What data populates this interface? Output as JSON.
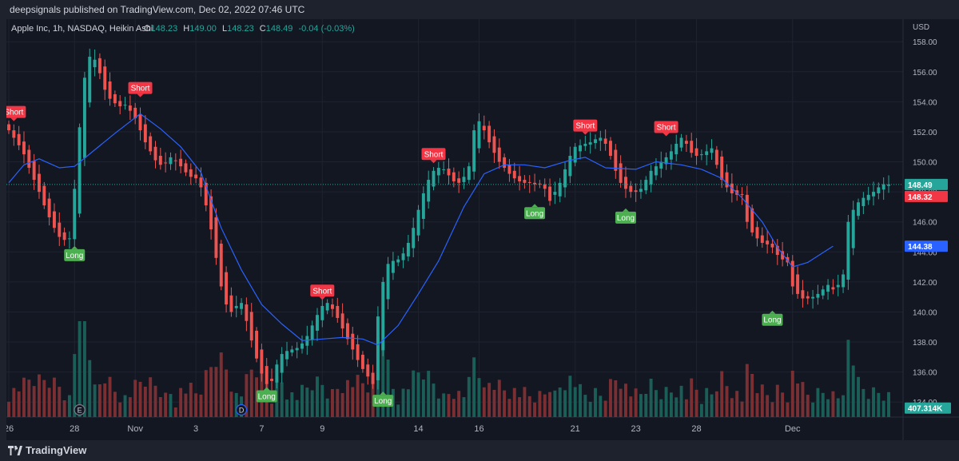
{
  "header": {
    "published": "deepsignals published on TradingView.com, Dec 02, 2022 07:46 UTC"
  },
  "legend": {
    "symbol": "Apple Inc, 1h, NASDAQ, Heikin Ashi",
    "o_label": "O",
    "o_value": "148.23",
    "h_label": "H",
    "h_value": "149.00",
    "l_label": "L",
    "l_value": "148.23",
    "c_label": "C",
    "c_value": "148.49",
    "change": "-0.04 (-0.03%)"
  },
  "footer": {
    "brand": "TradingView"
  },
  "colors": {
    "up": "#26a69a",
    "down": "#ef5350",
    "ma": "#2962ff",
    "bg": "#131722",
    "grid": "#1f2330",
    "text": "#b2b5be",
    "long": "#4caf50",
    "short": "#f23645",
    "vol_up": "#1b5e58",
    "vol_down": "#7a2f33"
  },
  "chart_data": {
    "type": "candlestick",
    "style": "Heikin Ashi",
    "symbol": "Apple Inc",
    "interval": "1h",
    "exchange": "NASDAQ",
    "currency": "USD",
    "ylim": [
      133,
      159.5
    ],
    "yticks": [
      "158.00",
      "156.00",
      "154.00",
      "152.00",
      "150.00",
      "148.00",
      "146.00",
      "144.00",
      "142.00",
      "140.00",
      "138.00",
      "136.00",
      "134.00"
    ],
    "xticks": [
      {
        "label": "26",
        "i": 0
      },
      {
        "label": "28",
        "i": 13
      },
      {
        "label": "Nov",
        "i": 25
      },
      {
        "label": "3",
        "i": 37
      },
      {
        "label": "7",
        "i": 50
      },
      {
        "label": "9",
        "i": 62
      },
      {
        "label": "14",
        "i": 81
      },
      {
        "label": "16",
        "i": 93
      },
      {
        "label": "21",
        "i": 112
      },
      {
        "label": "23",
        "i": 124
      },
      {
        "label": "28",
        "i": 136
      },
      {
        "label": "Dec",
        "i": 155
      }
    ],
    "closes": [
      152.1,
      151.6,
      151.1,
      150.5,
      149.6,
      148.8,
      148.0,
      147.1,
      146.3,
      145.6,
      145.0,
      144.8,
      144.9,
      148.2,
      152.3,
      155.6,
      157.0,
      156.8,
      155.9,
      154.8,
      154.2,
      153.9,
      153.7,
      153.8,
      153.4,
      152.9,
      152.1,
      151.3,
      150.7,
      150.1,
      149.8,
      149.9,
      150.3,
      150.1,
      149.7,
      149.3,
      149.0,
      148.9,
      148.3,
      147.1,
      145.5,
      143.6,
      141.7,
      140.5,
      140.0,
      140.4,
      140.6,
      139.4,
      138.1,
      136.9,
      135.9,
      135.2,
      135.4,
      136.5,
      137.2,
      137.4,
      137.5,
      137.6,
      137.9,
      138.4,
      139.1,
      139.8,
      140.4,
      140.6,
      140.2,
      139.6,
      138.9,
      138.2,
      137.5,
      136.8,
      136.2,
      135.7,
      135.2,
      139.7,
      142.0,
      143.2,
      143.4,
      143.5,
      143.9,
      144.6,
      145.6,
      146.8,
      147.9,
      148.8,
      149.4,
      149.6,
      149.5,
      149.1,
      148.7,
      148.6,
      149.0,
      149.7,
      152.1,
      152.7,
      152.1,
      151.3,
      150.6,
      150.0,
      149.6,
      149.2,
      148.9,
      148.7,
      148.6,
      148.6,
      148.5,
      148.5,
      148.2,
      147.4,
      148.0,
      148.6,
      149.5,
      150.4,
      151.0,
      151.1,
      151.2,
      151.3,
      151.5,
      151.6,
      151.2,
      150.4,
      149.4,
      148.6,
      148.2,
      148.0,
      148.0,
      148.2,
      148.8,
      149.4,
      149.7,
      150.0,
      150.3,
      150.7,
      151.2,
      151.6,
      151.2,
      150.6,
      150.4,
      150.5,
      150.7,
      150.9,
      149.8,
      148.8,
      148.3,
      147.9,
      147.8,
      147.8,
      146.0,
      145.3,
      144.9,
      144.6,
      144.5,
      144.3,
      143.8,
      143.5,
      143.3,
      141.7,
      141.2,
      140.9,
      140.9,
      141.0,
      141.2,
      141.5,
      141.8,
      141.5,
      141.8,
      142.5,
      146.0,
      146.8,
      147.3,
      147.6,
      147.8,
      148.0,
      148.3,
      148.5,
      148.49
    ],
    "ma_line": [
      [
        0,
        148.6
      ],
      [
        3,
        149.8
      ],
      [
        6,
        150.2
      ],
      [
        10,
        149.6
      ],
      [
        13,
        149.7
      ],
      [
        17,
        150.8
      ],
      [
        21,
        151.9
      ],
      [
        26,
        153.2
      ],
      [
        30,
        152.2
      ],
      [
        34,
        151.0
      ],
      [
        38,
        149.3
      ],
      [
        42,
        145.6
      ],
      [
        46,
        142.8
      ],
      [
        50,
        140.5
      ],
      [
        54,
        139.2
      ],
      [
        58,
        138.1
      ],
      [
        62,
        138.2
      ],
      [
        66,
        138.3
      ],
      [
        70,
        138.2
      ],
      [
        73,
        137.8
      ],
      [
        77,
        139.1
      ],
      [
        81,
        141.2
      ],
      [
        85,
        143.4
      ],
      [
        90,
        147.0
      ],
      [
        94,
        149.2
      ],
      [
        98,
        149.8
      ],
      [
        102,
        149.8
      ],
      [
        106,
        149.6
      ],
      [
        111,
        150.1
      ],
      [
        114,
        150.3
      ],
      [
        118,
        149.6
      ],
      [
        124,
        149.5
      ],
      [
        128,
        150.0
      ],
      [
        133,
        149.8
      ],
      [
        137,
        149.5
      ],
      [
        141,
        148.9
      ],
      [
        145,
        147.6
      ],
      [
        149,
        146.0
      ],
      [
        152,
        144.3
      ],
      [
        155,
        143.0
      ],
      [
        158,
        143.3
      ],
      [
        163,
        144.38
      ]
    ],
    "signals": [
      {
        "label": "Short",
        "i": 1,
        "price": 152.6
      },
      {
        "label": "Short",
        "i": 26,
        "price": 154.2
      },
      {
        "label": "Long",
        "i": 13,
        "price": 144.5
      },
      {
        "label": "Long",
        "i": 51,
        "price": 135.1
      },
      {
        "label": "Short",
        "i": 62,
        "price": 140.7
      },
      {
        "label": "Long",
        "i": 74,
        "price": 134.8
      },
      {
        "label": "Short",
        "i": 84,
        "price": 149.8
      },
      {
        "label": "Long",
        "i": 104,
        "price": 147.3
      },
      {
        "label": "Short",
        "i": 114,
        "price": 151.7
      },
      {
        "label": "Long",
        "i": 122,
        "price": 147.0
      },
      {
        "label": "Short",
        "i": 130,
        "price": 151.6
      },
      {
        "label": "Long",
        "i": 151,
        "price": 140.2
      }
    ],
    "events": [
      {
        "label": "E",
        "i": 14
      },
      {
        "label": "D",
        "i": 46
      }
    ],
    "volume_peak": 1.0,
    "price_labels": [
      {
        "value": "148.49",
        "price": 148.49,
        "color": "#26a69a"
      },
      {
        "value": "148.32",
        "price": 148.32,
        "color": "#f23645"
      },
      {
        "value": "144.38",
        "price": 144.38,
        "color": "#2962ff"
      },
      {
        "value": "407.314K",
        "price": 133.6,
        "color": "#26a69a"
      }
    ]
  }
}
